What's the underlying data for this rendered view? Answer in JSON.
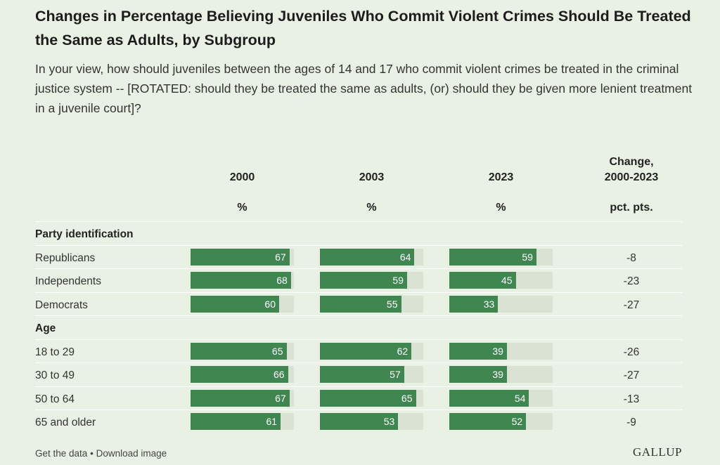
{
  "title": "Changes in Percentage Believing Juveniles Who Commit Violent Crimes Should Be Treated the Same as Adults, by Subgroup",
  "subtitle": "In your view, how should juveniles between the ages of 14 and 17 who commit violent crimes be treated in the criminal justice system -- [ROTATED: should they be treated the same as adults, (or) should they be given more lenient treatment in a juvenile court]?",
  "columns": [
    {
      "year": "2000",
      "unit": "%"
    },
    {
      "year": "2003",
      "unit": "%"
    },
    {
      "year": "2023",
      "unit": "%"
    }
  ],
  "change_header": {
    "line1": "Change,",
    "line2": "2000-2023",
    "unit": "pct. pts."
  },
  "footer": {
    "get_data": "Get the data",
    "separator": "•",
    "download": "Download image",
    "brand": "GALLUP"
  },
  "chart_data": {
    "type": "bar",
    "title": "Changes in Percentage Believing Juveniles Who Commit Violent Crimes Should Be Treated the Same as Adults, by Subgroup",
    "ylim": [
      0,
      100
    ],
    "groups": [
      {
        "name": "Party identification",
        "rows": [
          {
            "label": "Republicans",
            "values": [
              67,
              64,
              59
            ],
            "change": "-8"
          },
          {
            "label": "Independents",
            "values": [
              68,
              59,
              45
            ],
            "change": "-23"
          },
          {
            "label": "Democrats",
            "values": [
              60,
              55,
              33
            ],
            "change": "-27"
          }
        ]
      },
      {
        "name": "Age",
        "rows": [
          {
            "label": "18 to 29",
            "values": [
              65,
              62,
              39
            ],
            "change": "-26"
          },
          {
            "label": "30 to 49",
            "values": [
              66,
              57,
              39
            ],
            "change": "-27"
          },
          {
            "label": "50 to 64",
            "values": [
              67,
              65,
              54
            ],
            "change": "-13"
          },
          {
            "label": "65 and older",
            "values": [
              61,
              53,
              52
            ],
            "change": "-9"
          }
        ]
      }
    ],
    "colors": {
      "bar": "#3f8651",
      "track": "#d9e2d3",
      "background": "#e9f1e4"
    }
  }
}
